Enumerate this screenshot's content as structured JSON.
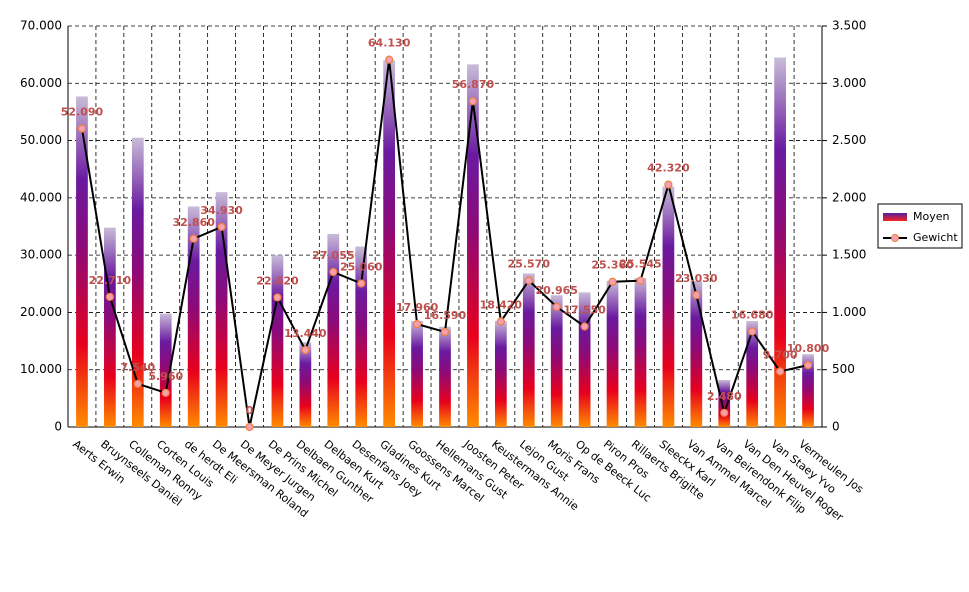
{
  "chart_data": {
    "type": "bar+line",
    "categories": [
      "Aerts Erwin",
      "Bruynseels Daniël",
      "Colleman Ronny",
      "Corten Louis",
      "de herdt Eli",
      "De Meersman Roland",
      "De Meyer Jurgen",
      "De Prins Michel",
      "Delbaen Gunther",
      "Delbaen Kurt",
      "Desenfans Joey",
      "Gladines Kurt",
      "Goossens Marcel",
      "Hellemans Gust",
      "Joosten Peter",
      "Keustermans Annie",
      "Lejon Gust",
      "Moris Frans",
      "Op de Beeck Luc",
      "Piron Pros",
      "Rillaerts Brigitte",
      "Sleeckx Karl",
      "Van Ammel Marcel",
      "Van Beirendonk Filip",
      "Van Den Heuvel Roger",
      "Van Staey Yvo",
      "Vermeulen Jos"
    ],
    "series": [
      {
        "name": "Moyen",
        "type": "bar",
        "color": "#7030a0",
        "values": [
          57700,
          34800,
          50500,
          19800,
          38500,
          41000,
          0,
          30000,
          14800,
          33700,
          31500,
          64000,
          18500,
          17500,
          63300,
          18500,
          26800,
          23000,
          23500,
          25500,
          26000,
          42000,
          25500,
          8200,
          18500,
          64500,
          12700
        ]
      },
      {
        "name": "Gewicht",
        "type": "line",
        "color": "#000000",
        "values": [
          52090,
          22710,
          7540,
          5960,
          32860,
          34930,
          0,
          22620,
          13440,
          27055,
          25060,
          64130,
          17960,
          16590,
          56870,
          18420,
          25570,
          20965,
          17550,
          25360,
          25545,
          42320,
          23030,
          2480,
          16680,
          9700,
          10800
        ],
        "value_labels": [
          "52.090",
          "22.710",
          "7.540",
          "5.960",
          "32.860",
          "34.930",
          "0",
          "22.620",
          "13.440",
          "27.055",
          "25.060",
          "64.130",
          "17.960",
          "16.590",
          "56.870",
          "18.420",
          "25.570",
          "20.965",
          "17.550",
          "25.360",
          "25.545",
          "42.320",
          "23.030",
          "2.480",
          "16.680",
          "9.700",
          "10.800"
        ]
      }
    ],
    "ylim": [
      0,
      70000
    ],
    "yticks": [
      0,
      {
        "value": 10000,
        "label": "10.000"
      },
      {
        "value": 20000,
        "label": "20.000"
      },
      {
        "value": 30000,
        "label": "30.000"
      },
      {
        "value": 40000,
        "label": "40.000"
      },
      {
        "value": 50000,
        "label": "50.000"
      },
      {
        "value": 60000,
        "label": "60.000"
      },
      {
        "value": 70000,
        "label": "70.000"
      }
    ],
    "y2lim": [
      0,
      3500
    ],
    "y2ticks": [
      0,
      500,
      {
        "value": 1000,
        "label": "1.000"
      },
      {
        "value": 1500,
        "label": "1.500"
      },
      {
        "value": 2000,
        "label": "2.000"
      },
      {
        "value": 2500,
        "label": "2.500"
      },
      {
        "value": 3000,
        "label": "3.000"
      },
      {
        "value": 3500,
        "label": "3.500"
      }
    ],
    "grid": true,
    "legend": "right"
  }
}
